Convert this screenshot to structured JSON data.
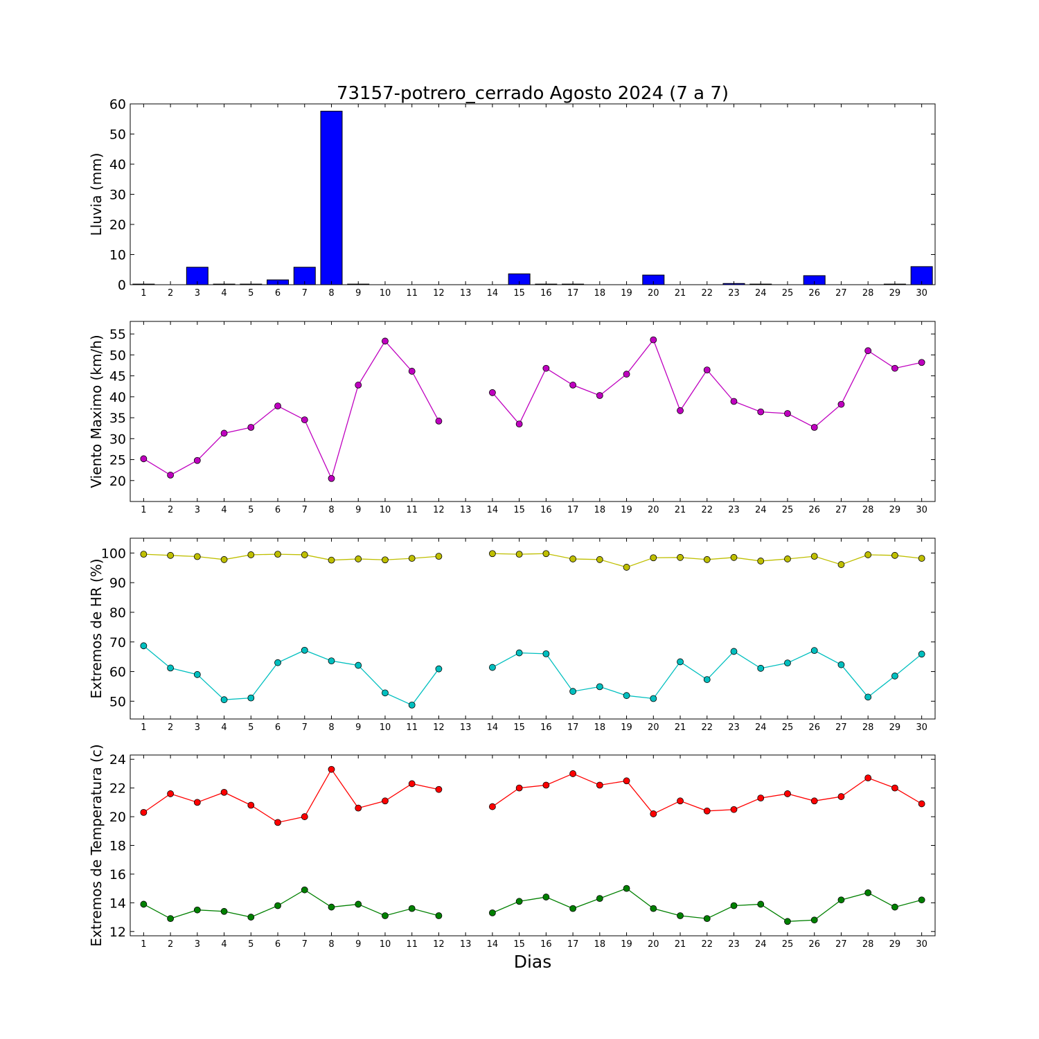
{
  "chart_data": [
    {
      "type": "bar",
      "title": "73157-potrero_cerrado Agosto 2024  (7 a 7)",
      "ylabel": "Lluvia (mm)",
      "xlabel": "",
      "ylim": [
        0,
        60
      ],
      "yticks": [
        0,
        10,
        20,
        30,
        40,
        50,
        60
      ],
      "categories": [
        1,
        2,
        3,
        4,
        5,
        6,
        7,
        8,
        9,
        10,
        11,
        12,
        13,
        14,
        15,
        16,
        17,
        18,
        19,
        20,
        21,
        22,
        23,
        24,
        25,
        26,
        27,
        28,
        29,
        30
      ],
      "values": [
        0.2,
        0,
        5.8,
        0.2,
        0.2,
        1.6,
        5.8,
        57.6,
        0.2,
        0,
        0,
        0,
        0,
        0,
        3.6,
        0.2,
        0.2,
        0,
        0,
        3.2,
        0,
        0,
        0.4,
        0.2,
        0,
        3.0,
        0,
        0,
        0.2,
        6.0
      ],
      "color": "#0000ff"
    },
    {
      "type": "line",
      "ylabel": "Viento Maximo (km/h)",
      "ylim": [
        15,
        58
      ],
      "yticks": [
        20,
        25,
        30,
        35,
        40,
        45,
        50,
        55
      ],
      "x": [
        1,
        2,
        3,
        4,
        5,
        6,
        7,
        8,
        9,
        10,
        11,
        12,
        13,
        14,
        15,
        16,
        17,
        18,
        19,
        20,
        21,
        22,
        23,
        24,
        25,
        26,
        27,
        28,
        29,
        30
      ],
      "series": [
        {
          "color": "#bf00bf",
          "values": [
            25.2,
            21.3,
            24.8,
            31.3,
            32.7,
            37.8,
            34.5,
            20.5,
            42.8,
            53.3,
            46.1,
            34.2,
            null,
            41.0,
            33.5,
            46.8,
            42.8,
            40.3,
            45.4,
            53.6,
            36.7,
            46.4,
            38.9,
            36.4,
            36.0,
            32.7,
            38.2,
            51.0,
            46.8,
            48.2
          ]
        }
      ]
    },
    {
      "type": "line",
      "ylabel": "Extremos de HR (%)",
      "ylim": [
        44,
        105
      ],
      "yticks": [
        50,
        60,
        70,
        80,
        90,
        100
      ],
      "x": [
        1,
        2,
        3,
        4,
        5,
        6,
        7,
        8,
        9,
        10,
        11,
        12,
        13,
        14,
        15,
        16,
        17,
        18,
        19,
        20,
        21,
        22,
        23,
        24,
        25,
        26,
        27,
        28,
        29,
        30
      ],
      "series": [
        {
          "color": "#bfbf00",
          "values": [
            99.6,
            99.2,
            98.8,
            97.8,
            99.4,
            99.6,
            99.4,
            97.6,
            98.0,
            97.7,
            98.2,
            98.9,
            null,
            99.8,
            99.6,
            99.8,
            98.0,
            97.8,
            95.2,
            98.4,
            98.5,
            97.8,
            98.5,
            97.3,
            98.0,
            98.9,
            96.1,
            99.4,
            99.2,
            98.2
          ]
        },
        {
          "color": "#00bfbf",
          "values": [
            68.7,
            61.2,
            59.0,
            50.5,
            51.1,
            63.0,
            67.2,
            63.6,
            62.1,
            52.8,
            48.7,
            60.9,
            null,
            61.4,
            66.3,
            66.0,
            53.3,
            54.9,
            51.9,
            50.9,
            63.3,
            57.3,
            66.8,
            61.1,
            62.9,
            67.1,
            62.3,
            51.4,
            58.5,
            65.9
          ]
        }
      ]
    },
    {
      "type": "line",
      "ylabel": "Extremos de Temperatura (c)",
      "xlabel": "Dias",
      "ylim": [
        11.7,
        24.3
      ],
      "yticks": [
        12,
        14,
        16,
        18,
        20,
        22,
        24
      ],
      "x": [
        1,
        2,
        3,
        4,
        5,
        6,
        7,
        8,
        9,
        10,
        11,
        12,
        13,
        14,
        15,
        16,
        17,
        18,
        19,
        20,
        21,
        22,
        23,
        24,
        25,
        26,
        27,
        28,
        29,
        30
      ],
      "series": [
        {
          "color": "#ff0000",
          "values": [
            20.3,
            21.6,
            21.0,
            21.7,
            20.8,
            19.6,
            20.0,
            23.3,
            20.6,
            21.1,
            22.3,
            21.9,
            null,
            20.7,
            22.0,
            22.2,
            23.0,
            22.2,
            22.5,
            20.2,
            21.1,
            20.4,
            20.5,
            21.3,
            21.6,
            21.1,
            21.4,
            22.7,
            22.0,
            20.9
          ]
        },
        {
          "color": "#008000",
          "values": [
            13.9,
            12.9,
            13.5,
            13.4,
            13.0,
            13.8,
            14.9,
            13.7,
            13.9,
            13.1,
            13.6,
            13.1,
            null,
            13.3,
            14.1,
            14.4,
            13.6,
            14.3,
            15.0,
            13.6,
            13.1,
            12.9,
            13.8,
            13.9,
            12.7,
            12.8,
            14.2,
            14.7,
            13.7,
            14.2
          ]
        }
      ]
    }
  ]
}
